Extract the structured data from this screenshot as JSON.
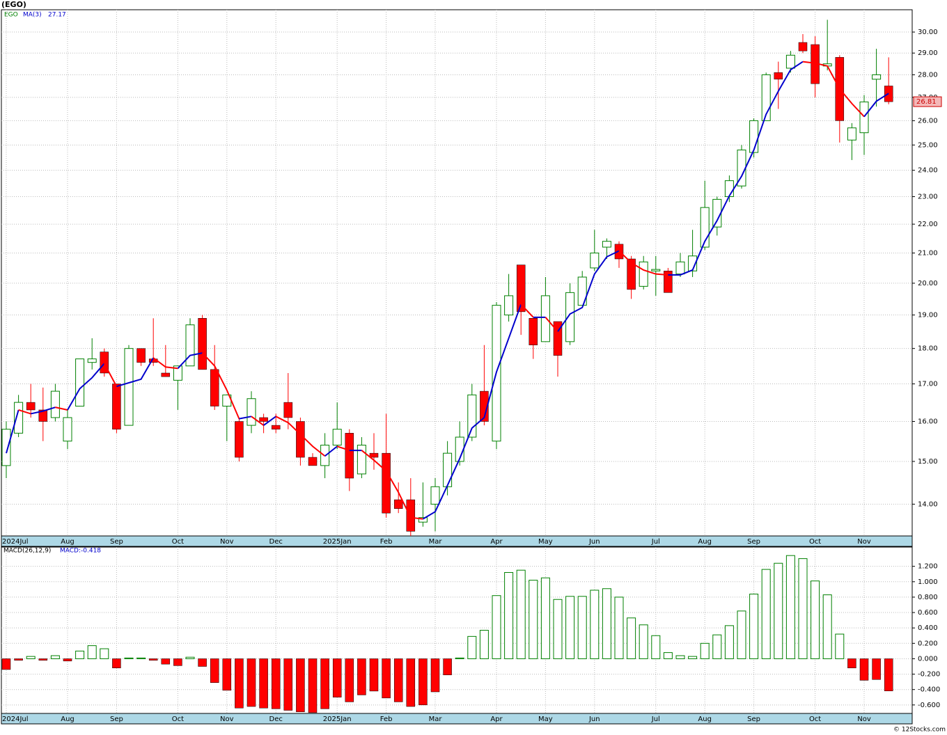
{
  "chart_data": [
    {
      "type": "candlestick",
      "title": "(EGO)",
      "log": true,
      "grid": true,
      "categories": [
        "2024Jul",
        null,
        null,
        null,
        null,
        "Aug",
        null,
        null,
        null,
        "Sep",
        null,
        null,
        null,
        null,
        "Oct",
        null,
        null,
        null,
        "Nov",
        null,
        null,
        null,
        "Dec",
        null,
        null,
        null,
        null,
        "2025Jan",
        null,
        null,
        null,
        "Feb",
        null,
        null,
        null,
        "Mar",
        null,
        null,
        null,
        null,
        "Apr",
        null,
        null,
        null,
        "May",
        null,
        null,
        null,
        "Jun",
        null,
        null,
        null,
        null,
        "Jul",
        null,
        null,
        null,
        "Aug",
        null,
        null,
        null,
        "Sep",
        null,
        null,
        null,
        null,
        "Oct",
        null,
        null,
        null,
        "Nov",
        null,
        null
      ],
      "ylim": [
        13.3,
        31.1
      ],
      "yticks": [
        {
          "value": 14,
          "label": "14.00"
        },
        {
          "value": 15,
          "label": "15.00"
        },
        {
          "value": 16,
          "label": "16.00"
        },
        {
          "value": 17,
          "label": "17.00"
        },
        {
          "value": 18,
          "label": "18.00"
        },
        {
          "value": 19,
          "label": "19.00"
        },
        {
          "value": 20,
          "label": "20.00"
        },
        {
          "value": 21,
          "label": "21.00"
        },
        {
          "value": 22,
          "label": "22.00"
        },
        {
          "value": 23,
          "label": "23.00"
        },
        {
          "value": 24,
          "label": "24.00"
        },
        {
          "value": 25,
          "label": "25.00"
        },
        {
          "value": 26,
          "label": "26.00"
        },
        {
          "value": 27,
          "label": "27.00"
        },
        {
          "value": 28,
          "label": "28.00"
        },
        {
          "value": 29,
          "label": "29.00"
        },
        {
          "value": 30,
          "label": "30.00"
        }
      ],
      "series": [
        {
          "name": "EGO",
          "up_color": "#008000",
          "down_color": "#ff0000",
          "open": [
            14.9,
            15.7,
            16.5,
            16.3,
            16.1,
            15.5,
            16.4,
            17.6,
            17.9,
            17.0,
            15.9,
            18.0,
            17.7,
            17.3,
            17.1,
            17.5,
            18.9,
            17.4,
            16.4,
            16.0,
            15.9,
            16.1,
            15.9,
            16.5,
            16.0,
            15.1,
            14.9,
            15.4,
            15.7,
            14.7,
            15.2,
            15.2,
            14.1,
            14.1,
            13.6,
            14.0,
            14.4,
            15.0,
            15.6,
            16.8,
            15.5,
            19.0,
            20.6,
            18.9,
            18.2,
            18.8,
            18.2,
            19.3,
            20.5,
            21.2,
            21.3,
            20.8,
            19.9,
            20.4,
            20.4,
            20.3,
            20.4,
            21.2,
            21.9,
            23.0,
            23.4,
            24.7,
            26.0,
            28.1,
            28.3,
            29.5,
            29.4,
            28.4,
            28.8,
            25.2,
            25.5,
            27.8,
            27.5
          ],
          "high": [
            16.0,
            16.7,
            17.0,
            16.9,
            17.0,
            16.3,
            17.7,
            18.3,
            18.0,
            17.0,
            18.1,
            18.0,
            18.9,
            18.1,
            17.5,
            18.9,
            19.0,
            18.1,
            16.7,
            16.1,
            16.8,
            16.2,
            16.2,
            17.3,
            16.1,
            15.2,
            15.7,
            16.5,
            15.8,
            15.6,
            15.7,
            16.2,
            14.5,
            14.6,
            14.5,
            14.6,
            15.5,
            16.0,
            17.0,
            18.1,
            19.4,
            20.3,
            20.6,
            18.9,
            20.2,
            18.8,
            20.0,
            20.4,
            21.8,
            21.5,
            21.4,
            20.9,
            20.9,
            20.9,
            20.5,
            21.0,
            21.8,
            23.6,
            23.0,
            23.8,
            25.0,
            26.1,
            28.1,
            28.6,
            29.1,
            29.9,
            29.8,
            30.6,
            28.9,
            25.9,
            27.1,
            29.2,
            28.8
          ],
          "low": [
            14.6,
            15.6,
            16.1,
            15.5,
            16.0,
            15.3,
            16.4,
            17.4,
            17.2,
            15.7,
            15.9,
            17.5,
            17.5,
            17.2,
            16.3,
            17.5,
            17.4,
            16.3,
            15.5,
            15.0,
            15.7,
            15.7,
            15.7,
            15.8,
            14.9,
            14.9,
            14.6,
            15.3,
            14.3,
            14.6,
            14.8,
            13.7,
            13.8,
            13.3,
            13.5,
            13.4,
            14.2,
            14.9,
            15.5,
            15.9,
            15.3,
            18.8,
            18.4,
            17.7,
            18.2,
            17.2,
            18.1,
            19.3,
            20.4,
            20.8,
            20.5,
            19.5,
            19.8,
            19.6,
            19.7,
            20.2,
            20.2,
            21.1,
            21.6,
            22.8,
            23.3,
            24.5,
            26.0,
            26.5,
            28.1,
            29.0,
            27.0,
            28.2,
            25.1,
            24.4,
            24.6,
            26.6,
            26.7
          ],
          "close": [
            15.8,
            16.5,
            16.3,
            16.0,
            16.8,
            16.1,
            17.7,
            17.7,
            17.3,
            15.8,
            18.0,
            17.6,
            17.6,
            17.2,
            17.5,
            18.7,
            17.4,
            16.4,
            16.7,
            15.1,
            16.6,
            16.0,
            15.8,
            16.1,
            15.1,
            14.9,
            15.4,
            15.8,
            14.6,
            15.4,
            15.1,
            13.8,
            13.9,
            13.4,
            13.7,
            14.4,
            15.2,
            15.6,
            16.7,
            16.0,
            19.3,
            19.6,
            19.1,
            18.1,
            19.6,
            17.8,
            19.7,
            20.2,
            21.0,
            21.4,
            20.8,
            19.8,
            20.7,
            20.45,
            19.7,
            20.7,
            20.9,
            22.6,
            22.9,
            23.6,
            24.8,
            26.0,
            28.0,
            27.8,
            28.9,
            29.1,
            27.6,
            28.5,
            26.0,
            25.7,
            26.8,
            28.0,
            26.81
          ]
        },
        {
          "name": "MA(3)",
          "color": "#0000cc",
          "down_color": "#ff0000",
          "values": [
            15.2,
            16.3,
            16.2,
            16.27,
            16.37,
            16.3,
            16.87,
            17.17,
            17.57,
            16.93,
            17.03,
            17.13,
            17.73,
            17.47,
            17.43,
            17.8,
            17.87,
            17.5,
            16.83,
            16.07,
            16.13,
            15.9,
            16.13,
            15.97,
            15.67,
            15.37,
            15.13,
            15.37,
            15.27,
            15.27,
            15.03,
            14.77,
            14.27,
            13.7,
            13.67,
            13.83,
            14.43,
            15.07,
            15.83,
            16.1,
            17.33,
            18.3,
            19.33,
            18.93,
            18.93,
            18.5,
            19.03,
            19.23,
            20.3,
            20.87,
            21.07,
            20.67,
            20.43,
            20.3,
            20.27,
            20.27,
            20.43,
            21.4,
            22.13,
            23.03,
            23.77,
            24.8,
            26.27,
            27.27,
            28.23,
            28.6,
            28.53,
            28.4,
            27.37,
            26.73,
            26.17,
            26.83,
            27.17
          ]
        }
      ]
    },
    {
      "type": "bar",
      "title": "MACD(26,12,9)",
      "grid": true,
      "categories": [
        "2024Jul",
        null,
        null,
        null,
        null,
        "Aug",
        null,
        null,
        null,
        "Sep",
        null,
        null,
        null,
        null,
        "Oct",
        null,
        null,
        null,
        "Nov",
        null,
        null,
        null,
        "Dec",
        null,
        null,
        null,
        null,
        "2025Jan",
        null,
        null,
        null,
        "Feb",
        null,
        null,
        null,
        "Mar",
        null,
        null,
        null,
        null,
        "Apr",
        null,
        null,
        null,
        "May",
        null,
        null,
        null,
        "Jun",
        null,
        null,
        null,
        null,
        "Jul",
        null,
        null,
        null,
        "Aug",
        null,
        null,
        null,
        "Sep",
        null,
        null,
        null,
        null,
        "Oct",
        null,
        null,
        null,
        "Nov",
        null,
        null
      ],
      "ylim": [
        -0.71,
        1.45
      ],
      "yticks": [
        {
          "value": -0.6,
          "label": "-0.600"
        },
        {
          "value": -0.4,
          "label": "-0.400"
        },
        {
          "value": -0.2,
          "label": "-0.200"
        },
        {
          "value": 0,
          "label": "0.000"
        },
        {
          "value": 0.2,
          "label": "0.200"
        },
        {
          "value": 0.4,
          "label": "0.400"
        },
        {
          "value": 0.6,
          "label": "0.600"
        },
        {
          "value": 0.8,
          "label": "0.800"
        },
        {
          "value": 1,
          "label": "1.000"
        },
        {
          "value": 1.2,
          "label": "1.200"
        }
      ],
      "series": [
        {
          "name": "MACD",
          "legend_label": "MACD:-0.418",
          "color": "#008000",
          "negative_color": "#ff0000",
          "values": [
            -0.14,
            -0.02,
            0.03,
            -0.02,
            0.04,
            -0.03,
            0.1,
            0.17,
            0.13,
            -0.12,
            0.01,
            0.01,
            -0.02,
            -0.07,
            -0.09,
            0.02,
            -0.1,
            -0.31,
            -0.41,
            -0.64,
            -0.62,
            -0.64,
            -0.65,
            -0.67,
            -0.69,
            -0.7,
            -0.65,
            -0.5,
            -0.56,
            -0.47,
            -0.42,
            -0.51,
            -0.56,
            -0.62,
            -0.6,
            -0.43,
            -0.21,
            0.01,
            0.29,
            0.37,
            0.82,
            1.12,
            1.15,
            1.02,
            1.05,
            0.77,
            0.81,
            0.81,
            0.89,
            0.91,
            0.8,
            0.53,
            0.44,
            0.3,
            0.08,
            0.04,
            0.03,
            0.2,
            0.31,
            0.43,
            0.62,
            0.84,
            1.16,
            1.24,
            1.34,
            1.3,
            1.01,
            0.83,
            0.32,
            -0.12,
            -0.28,
            -0.27,
            -0.418
          ]
        }
      ]
    }
  ],
  "credit": "© 12Stocks.com"
}
